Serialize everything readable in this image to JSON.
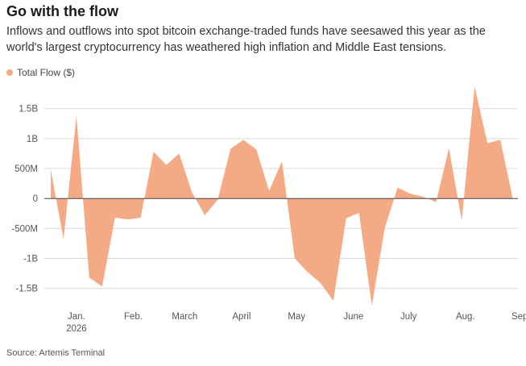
{
  "header": {
    "title": "Go with the flow",
    "subtitle": "Inflows and outflows into spot bitcoin exchange-traded funds have seesawed this year as the world's largest cryptocurrency has weathered high inflation and Middle East tensions."
  },
  "footer": {
    "source": "Source: Artemis Terminal"
  },
  "chart_data": {
    "type": "area",
    "title": "Go with the flow",
    "subtitle": "Inflows and outflows into spot bitcoin exchange-traded funds have seesawed this year as the world's largest cryptocurrency has weathered high inflation and Middle East tensions.",
    "xlabel": "",
    "ylabel": "",
    "ylim": [
      -1800000000,
      1900000000
    ],
    "grid": true,
    "legend": "top-left",
    "color": "#f4aa85",
    "series": [
      {
        "name": "Total Flow ($)",
        "x": [
          "2026-01-01",
          "2026-01-08",
          "2026-01-15",
          "2026-01-22",
          "2026-01-29",
          "2026-02-05",
          "2026-02-12",
          "2026-02-19",
          "2026-02-26",
          "2026-03-05",
          "2026-03-12",
          "2026-03-19",
          "2026-03-26",
          "2026-04-02",
          "2026-04-09",
          "2026-04-16",
          "2026-04-23",
          "2026-04-30",
          "2026-05-07",
          "2026-05-14",
          "2026-05-21",
          "2026-05-28",
          "2026-06-04",
          "2026-06-11",
          "2026-06-18",
          "2026-06-25",
          "2026-07-02",
          "2026-07-09",
          "2026-07-16",
          "2026-07-23",
          "2026-07-30",
          "2026-08-06",
          "2026-08-13",
          "2026-08-20",
          "2026-08-27",
          "2026-09-03",
          "2026-09-10"
        ],
        "values": [
          480000000,
          -680000000,
          1380000000,
          -1320000000,
          -1470000000,
          -320000000,
          -350000000,
          -320000000,
          780000000,
          560000000,
          750000000,
          100000000,
          -280000000,
          -20000000,
          830000000,
          980000000,
          820000000,
          130000000,
          620000000,
          -1000000000,
          -1230000000,
          -1410000000,
          -1710000000,
          -330000000,
          -240000000,
          -1790000000,
          -500000000,
          180000000,
          80000000,
          30000000,
          -60000000,
          840000000,
          -370000000,
          1870000000,
          920000000,
          980000000,
          -30000000
        ]
      }
    ],
    "y_ticks": [
      {
        "value": 1500000000,
        "label": "1.5B"
      },
      {
        "value": 1000000000,
        "label": "1B"
      },
      {
        "value": 500000000,
        "label": "500M"
      },
      {
        "value": 0,
        "label": "0"
      },
      {
        "value": -500000000,
        "label": "-500M"
      },
      {
        "value": -1000000000,
        "label": "-1B"
      },
      {
        "value": -1500000000,
        "label": "-1.5B"
      }
    ],
    "x_ticks": [
      {
        "date": "2026-01-15",
        "label": "Jan.",
        "sub": "2026"
      },
      {
        "date": "2026-02-15",
        "label": "Feb.",
        "sub": ""
      },
      {
        "date": "2026-03-15",
        "label": "March",
        "sub": ""
      },
      {
        "date": "2026-04-15",
        "label": "April",
        "sub": ""
      },
      {
        "date": "2026-05-15",
        "label": "May",
        "sub": ""
      },
      {
        "date": "2026-06-15",
        "label": "June",
        "sub": ""
      },
      {
        "date": "2026-07-15",
        "label": "July",
        "sub": ""
      },
      {
        "date": "2026-08-15",
        "label": "Aug.",
        "sub": ""
      },
      {
        "date": "2026-09-15",
        "label": "Sept.",
        "sub": ""
      }
    ]
  }
}
